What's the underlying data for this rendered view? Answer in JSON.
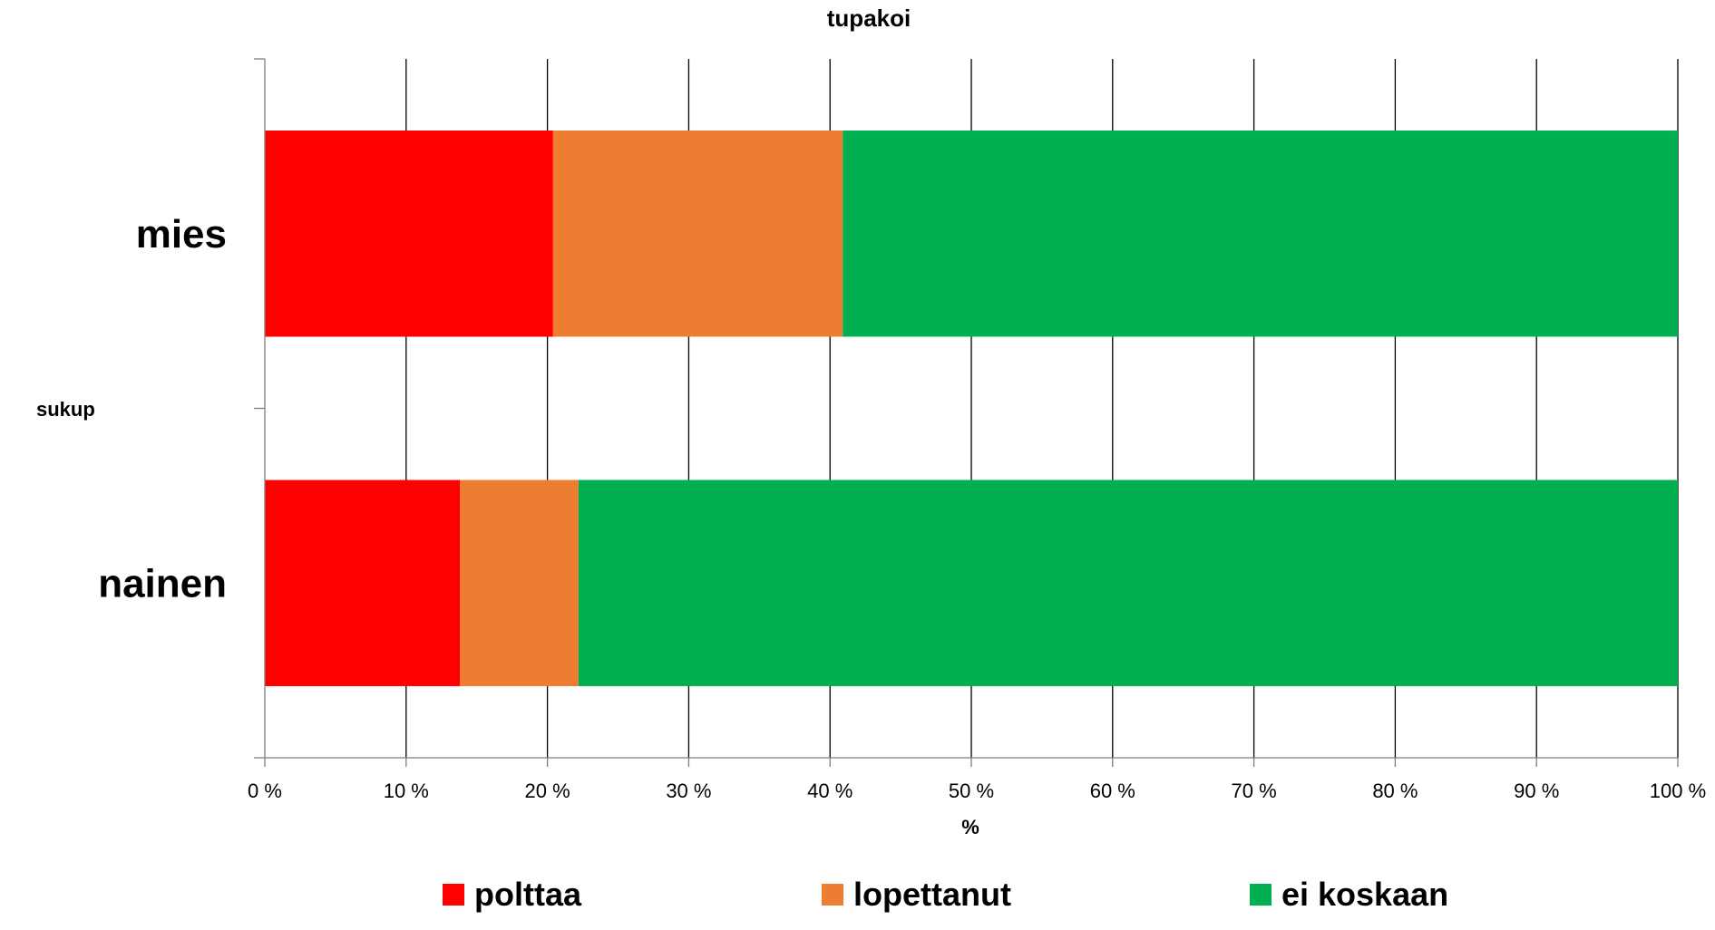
{
  "chart_data": {
    "type": "bar",
    "orientation": "horizontal",
    "stacked": "percent",
    "title": "tupakoi",
    "xlabel": "%",
    "ylabel": "sukup",
    "categories": [
      "mies",
      "nainen"
    ],
    "series": [
      {
        "name": "polttaa",
        "color": "#ff0000",
        "values": [
          20.4,
          13.8
        ]
      },
      {
        "name": "lopettanut",
        "color": "#ed7d31",
        "values": [
          20.5,
          8.4
        ]
      },
      {
        "name": "ei koskaan",
        "color": "#00b050",
        "values": [
          59.1,
          77.8
        ]
      }
    ],
    "xlim": [
      0,
      100
    ],
    "xticks": [
      0,
      10,
      20,
      30,
      40,
      50,
      60,
      70,
      80,
      90,
      100
    ],
    "xtick_labels": [
      "0 %",
      "10 %",
      "20 %",
      "30 %",
      "40 %",
      "50 %",
      "60 %",
      "70 %",
      "80 %",
      "90 %",
      "100 %"
    ],
    "grid": true,
    "legend": "bottom"
  }
}
